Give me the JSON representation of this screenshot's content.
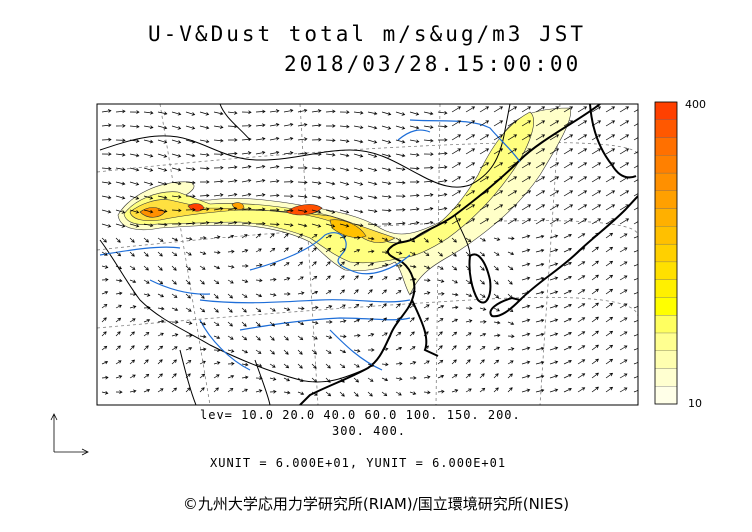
{
  "title": "U-V&Dust total m/s&ug/m3 JST",
  "datetime": "2018/03/28.15:00:00",
  "levels_line1": "lev= 10.0 20.0 40.0 60.0 100. 150. 200.",
  "levels_line2": "300. 400.",
  "units_line": "XUNIT = 6.000E+01, YUNIT = 6.000E+01",
  "colorbar": {
    "max_label": "400",
    "min_label": "10",
    "colors": [
      "#ffffe8",
      "#ffffd0",
      "#ffffb0",
      "#ffff90",
      "#ffff60",
      "#ffff00",
      "#fff000",
      "#ffe000",
      "#ffd000",
      "#ffc000",
      "#ffb000",
      "#ffa000",
      "#ff9000",
      "#ff8000",
      "#ff7000",
      "#ff5800",
      "#ff4000"
    ]
  },
  "copyright": "©九州大学応用力学研究所(RIAM)/国立環境研究所(NIES)",
  "colors": {
    "coast": "#000000",
    "river": "#1e6ed8",
    "border": "#000000",
    "grid": "#808080"
  }
}
